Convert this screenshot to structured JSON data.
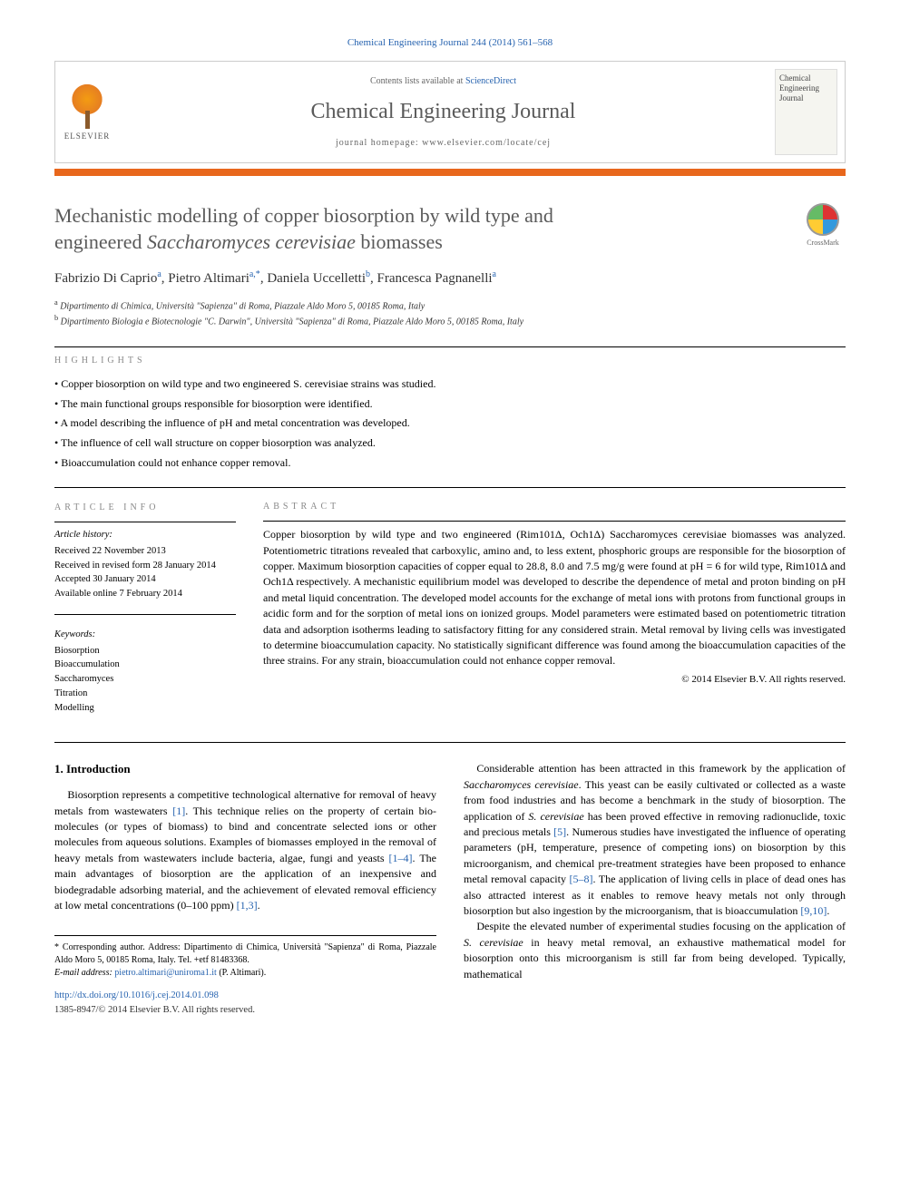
{
  "header": {
    "citation": "Chemical Engineering Journal 244 (2014) 561–568",
    "contents_prefix": "Contents lists available at ",
    "contents_link": "ScienceDirect",
    "journal_name": "Chemical Engineering Journal",
    "homepage_prefix": "journal homepage: ",
    "homepage": "www.elsevier.com/locate/cej",
    "publisher": "ELSEVIER",
    "cover_text": "Chemical Engineering Journal"
  },
  "colors": {
    "accent_bar": "#e8671c",
    "link": "#2864b0",
    "title_gray": "#5a5a5a"
  },
  "crossmark": "CrossMark",
  "title": {
    "line1": "Mechanistic modelling of copper biosorption by wild type and",
    "line2_pre": "engineered ",
    "line2_em": "Saccharomyces cerevisiae",
    "line2_post": " biomasses"
  },
  "authors": [
    {
      "name": "Fabrizio Di Caprio",
      "sup": "a"
    },
    {
      "name": "Pietro Altimari",
      "sup": "a,*"
    },
    {
      "name": "Daniela Uccelletti",
      "sup": "b"
    },
    {
      "name": "Francesca Pagnanelli",
      "sup": "a"
    }
  ],
  "affiliations": [
    {
      "sup": "a",
      "text": "Dipartimento di Chimica, Università \"Sapienza\" di Roma, Piazzale Aldo Moro 5, 00185 Roma, Italy"
    },
    {
      "sup": "b",
      "text": "Dipartimento Biologia e Biotecnologie \"C. Darwin\", Università \"Sapienza\" di Roma, Piazzale Aldo Moro 5, 00185 Roma, Italy"
    }
  ],
  "highlights_label": "highlights",
  "highlights": [
    "Copper biosorption on wild type and two engineered S. cerevisiae strains was studied.",
    "The main functional groups responsible for biosorption were identified.",
    "A model describing the influence of pH and metal concentration was developed.",
    "The influence of cell wall structure on copper biosorption was analyzed.",
    "Bioaccumulation could not enhance copper removal."
  ],
  "article_info_label": "article info",
  "history": {
    "label": "Article history:",
    "received": "Received 22 November 2013",
    "revised": "Received in revised form 28 January 2014",
    "accepted": "Accepted 30 January 2014",
    "online": "Available online 7 February 2014"
  },
  "keywords_label": "Keywords:",
  "keywords": [
    "Biosorption",
    "Bioaccumulation",
    "Saccharomyces",
    "Titration",
    "Modelling"
  ],
  "abstract_label": "abstract",
  "abstract": "Copper biosorption by wild type and two engineered (Rim101Δ, Och1Δ) Saccharomyces cerevisiae biomasses was analyzed. Potentiometric titrations revealed that carboxylic, amino and, to less extent, phosphoric groups are responsible for the biosorption of copper. Maximum biosorption capacities of copper equal to 28.8, 8.0 and 7.5 mg/g were found at pH = 6 for wild type, Rim101Δ and Och1Δ respectively. A mechanistic equilibrium model was developed to describe the dependence of metal and proton binding on pH and metal liquid concentration. The developed model accounts for the exchange of metal ions with protons from functional groups in acidic form and for the sorption of metal ions on ionized groups. Model parameters were estimated based on potentiometric titration data and adsorption isotherms leading to satisfactory fitting for any considered strain. Metal removal by living cells was investigated to determine bioaccumulation capacity. No statistically significant difference was found among the bioaccumulation capacities of the three strains. For any strain, bioaccumulation could not enhance copper removal.",
  "copyright": "© 2014 Elsevier B.V. All rights reserved.",
  "intro_heading": "1. Introduction",
  "intro_col1_p1": "Biosorption represents a competitive technological alternative for removal of heavy metals from wastewaters [1]. This technique relies on the property of certain bio-molecules (or types of biomass) to bind and concentrate selected ions or other molecules from aqueous solutions. Examples of biomasses employed in the removal of heavy metals from wastewaters include bacteria, algae, fungi and yeasts [1–4]. The main advantages of biosorption are the application of an inexpensive and biodegradable adsorbing material, and the achievement of elevated removal efficiency at low metal concentrations (0–100 ppm) [1,3].",
  "intro_col2_p1": "Considerable attention has been attracted in this framework by the application of Saccharomyces cerevisiae. This yeast can be easily cultivated or collected as a waste from food industries and has become a benchmark in the study of biosorption. The application of S. cerevisiae has been proved effective in removing radionuclide, toxic and precious metals [5]. Numerous studies have investigated the influence of operating parameters (pH, temperature, presence of competing ions) on biosorption by this microorganism, and chemical pre-treatment strategies have been proposed to enhance metal removal capacity [5–8]. The application of living cells in place of dead ones has also attracted interest as it enables to remove heavy metals not only through biosorption but also ingestion by the microorganism, that is bioaccumulation [9,10].",
  "intro_col2_p2": "Despite the elevated number of experimental studies focusing on the application of S. cerevisiae in heavy metal removal, an exhaustive mathematical model for biosorption onto this microorganism is still far from being developed. Typically, mathematical",
  "footer": {
    "corr": "* Corresponding author. Address: Dipartimento di Chimica, Università \"Sapienza\" di Roma, Piazzale Aldo Moro 5, 00185 Roma, Italy. Tel. +etf 81483368.",
    "email_label": "E-mail address: ",
    "email": "pietro.altimari@uniroma1.it",
    "email_suffix": " (P. Altimari).",
    "doi": "http://dx.doi.org/10.1016/j.cej.2014.01.098",
    "issn": "1385-8947/© 2014 Elsevier B.V. All rights reserved."
  }
}
